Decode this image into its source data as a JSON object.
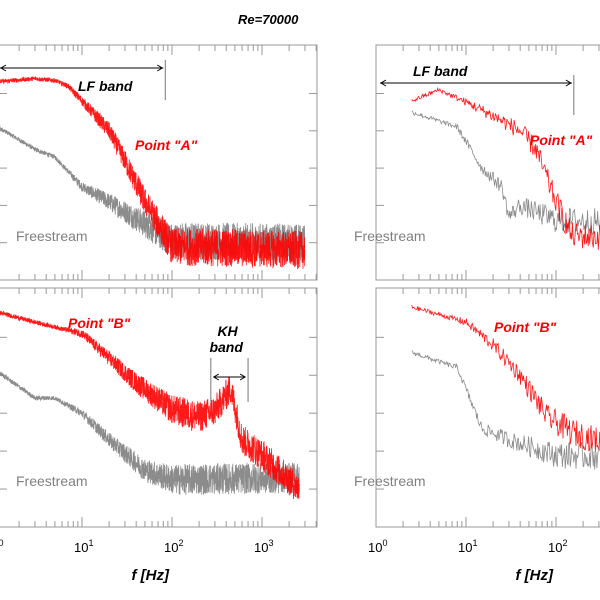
{
  "title": "Re=70000",
  "colors": {
    "point": "#ff0000",
    "freestream": "#808080",
    "annotation": "#000000",
    "axis": "#999999"
  },
  "chart_data": [
    {
      "type": "line",
      "panel": "top-left",
      "xscale": "log",
      "xlim": [
        1,
        3000
      ],
      "ylim": [
        0,
        6.3
      ],
      "xlabel": "",
      "xtick_labels": [],
      "annotations": {
        "band_label": "LF band",
        "band_range_hz": [
          1,
          80
        ]
      },
      "series": [
        {
          "name": "Point \"A\"",
          "color": "#ff0000",
          "x": [
            1,
            3,
            5,
            7,
            10,
            20,
            30,
            50,
            100,
            3000
          ],
          "y": [
            5.3,
            5.4,
            5.35,
            5.2,
            4.8,
            4.0,
            3.2,
            2.1,
            0.9,
            0.8
          ]
        },
        {
          "name": "Freestream",
          "color": "#808080",
          "x": [
            1,
            3,
            5,
            10,
            20,
            50,
            100,
            3000
          ],
          "y": [
            4.2,
            3.5,
            3.3,
            2.5,
            2.1,
            1.5,
            1.05,
            1.0
          ]
        }
      ]
    },
    {
      "type": "line",
      "panel": "bottom-left",
      "xscale": "log",
      "xlim": [
        1,
        3000
      ],
      "ylim": [
        0,
        6.3
      ],
      "xlabel": "f [Hz]",
      "xtick_labels": [
        "10^0",
        "10^1",
        "10^2",
        "10^3"
      ],
      "annotations": {
        "band_label_line1": "KH",
        "band_label_line2": "band",
        "band_range_hz": [
          270,
          700
        ]
      },
      "series": [
        {
          "name": "Point \"B\"",
          "color": "#ff0000",
          "x": [
            1,
            3,
            10,
            20,
            40,
            100,
            200,
            300,
            450,
            600,
            1000,
            2600
          ],
          "y": [
            5.7,
            5.4,
            5.1,
            4.45,
            3.8,
            3.1,
            2.9,
            3.07,
            3.65,
            2.3,
            1.9,
            1.0
          ]
        },
        {
          "name": "Freestream",
          "color": "#808080",
          "x": [
            1,
            3,
            5,
            10,
            20,
            50,
            100,
            2600
          ],
          "y": [
            4.2,
            3.4,
            3.4,
            3.0,
            2.3,
            1.5,
            1.25,
            1.3
          ]
        }
      ]
    },
    {
      "type": "line",
      "panel": "top-right",
      "xscale": "log",
      "xlim": [
        1,
        3000
      ],
      "ylim": [
        0,
        6.3
      ],
      "xlabel": "",
      "xtick_labels": [],
      "annotations": {
        "band_label": "LF band",
        "band_range_hz": [
          1,
          150
        ]
      },
      "series": [
        {
          "name": "Point \"A\"",
          "color": "#ff0000",
          "x": [
            2.5,
            5,
            10,
            20,
            40,
            60,
            100,
            150,
            3000
          ],
          "y": [
            4.8,
            5.1,
            4.77,
            4.4,
            4.0,
            3.5,
            2.1,
            1.2,
            1.0
          ]
        },
        {
          "name": "Freestream",
          "color": "#808080",
          "x": [
            2.5,
            8,
            15,
            25,
            30,
            40,
            100,
            3000
          ],
          "y": [
            4.5,
            4.1,
            3.0,
            2.5,
            1.7,
            2.0,
            1.6,
            1.5
          ]
        }
      ]
    },
    {
      "type": "line",
      "panel": "bottom-right",
      "xscale": "log",
      "xlim": [
        1,
        3000
      ],
      "ylim": [
        0,
        6.3
      ],
      "xlabel": "f [Hz]",
      "xtick_labels": [
        "10^0",
        "10^1",
        "10^2"
      ],
      "annotations": {},
      "series": [
        {
          "name": "Point \"B\"",
          "color": "#ff0000",
          "x": [
            2.5,
            10,
            20,
            40,
            80,
            150,
            3000
          ],
          "y": [
            5.8,
            5.4,
            4.8,
            4.0,
            2.9,
            2.5,
            1.5
          ]
        },
        {
          "name": "Freestream",
          "color": "#808080",
          "x": [
            2.5,
            8,
            15,
            30,
            100,
            3000
          ],
          "y": [
            4.6,
            4.2,
            2.6,
            2.3,
            1.9,
            1.8
          ]
        }
      ]
    }
  ]
}
